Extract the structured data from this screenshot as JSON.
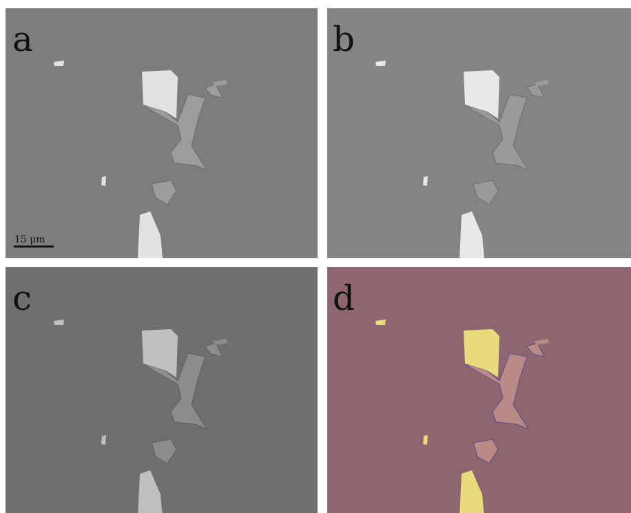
{
  "panels": [
    {
      "label": "a"
    },
    {
      "label": "b"
    },
    {
      "label": "c"
    },
    {
      "label": "d"
    }
  ],
  "scale_bar": "15 μm"
}
